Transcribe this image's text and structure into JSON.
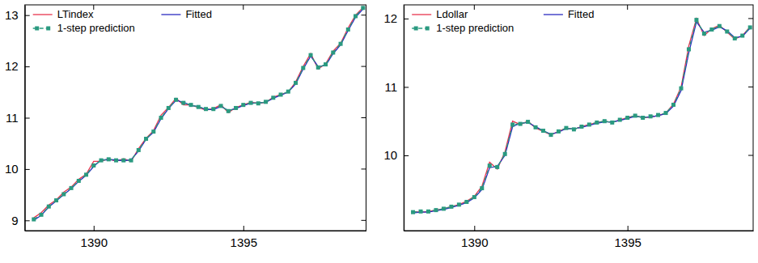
{
  "chart_data": [
    {
      "type": "line",
      "x": [
        1388,
        1388.25,
        1388.5,
        1388.75,
        1389,
        1389.25,
        1389.5,
        1389.75,
        1390,
        1390.25,
        1390.5,
        1390.75,
        1391,
        1391.25,
        1391.5,
        1391.75,
        1392,
        1392.25,
        1392.5,
        1392.75,
        1393,
        1393.25,
        1393.5,
        1393.75,
        1394,
        1394.25,
        1394.5,
        1394.75,
        1395,
        1395.25,
        1395.5,
        1395.75,
        1396,
        1396.25,
        1396.5,
        1396.75,
        1397,
        1397.25,
        1397.5,
        1397.75,
        1398,
        1398.25,
        1398.5,
        1398.75,
        1399
      ],
      "series": [
        {
          "name": "LTindex",
          "color": "#e8344e",
          "line_style": "solid",
          "values": [
            9.05,
            9.15,
            9.3,
            9.4,
            9.55,
            9.65,
            9.8,
            9.9,
            10.15,
            10.15,
            10.2,
            10.15,
            10.2,
            10.15,
            10.4,
            10.6,
            10.75,
            11.05,
            11.2,
            11.38,
            11.25,
            11.25,
            11.2,
            11.15,
            11.18,
            11.25,
            11.1,
            11.2,
            11.25,
            11.3,
            11.28,
            11.3,
            11.4,
            11.45,
            11.5,
            11.7,
            12.0,
            12.25,
            11.95,
            12.05,
            12.3,
            12.45,
            12.75,
            13.0,
            13.15
          ]
        },
        {
          "name": "Fitted",
          "color": "#2a2ac0",
          "line_style": "solid",
          "values": [
            9.0,
            9.1,
            9.26,
            9.38,
            9.5,
            9.62,
            9.76,
            9.88,
            10.05,
            10.18,
            10.18,
            10.18,
            10.16,
            10.18,
            10.35,
            10.58,
            10.72,
            10.98,
            11.18,
            11.34,
            11.3,
            11.24,
            11.22,
            11.16,
            11.16,
            11.22,
            11.14,
            11.18,
            11.24,
            11.28,
            11.29,
            11.3,
            11.38,
            11.44,
            11.5,
            11.66,
            11.95,
            12.2,
            12.0,
            12.02,
            12.25,
            12.42,
            12.7,
            12.96,
            13.12
          ]
        },
        {
          "name": "1-step prediction",
          "color": "#2a9a80",
          "line_style": "dashed",
          "marker": "square",
          "values": [
            9.02,
            9.11,
            9.27,
            9.39,
            9.51,
            9.63,
            9.77,
            9.89,
            10.07,
            10.17,
            10.19,
            10.17,
            10.17,
            10.17,
            10.37,
            10.59,
            10.73,
            11.0,
            11.19,
            11.35,
            11.29,
            11.25,
            11.21,
            11.17,
            11.17,
            11.23,
            11.13,
            11.19,
            11.25,
            11.29,
            11.28,
            11.31,
            11.39,
            11.45,
            11.51,
            11.68,
            11.97,
            12.22,
            11.98,
            12.04,
            12.27,
            12.44,
            12.72,
            12.98,
            13.14
          ]
        }
      ],
      "xlim": [
        1387.7,
        1399.1
      ],
      "xticks": [
        1390,
        1395
      ],
      "ylim": [
        8.8,
        13.2
      ],
      "yticks": [
        9,
        10,
        11,
        12,
        13
      ],
      "grid": false,
      "legend": "top-left"
    },
    {
      "type": "line",
      "x": [
        1388,
        1388.25,
        1388.5,
        1388.75,
        1389,
        1389.25,
        1389.5,
        1389.75,
        1390,
        1390.25,
        1390.5,
        1390.75,
        1391,
        1391.25,
        1391.5,
        1391.75,
        1392,
        1392.25,
        1392.5,
        1392.75,
        1393,
        1393.25,
        1393.5,
        1393.75,
        1394,
        1394.25,
        1394.5,
        1394.75,
        1395,
        1395.25,
        1395.5,
        1395.75,
        1396,
        1396.25,
        1396.5,
        1396.75,
        1397,
        1397.25,
        1397.5,
        1397.75,
        1398,
        1398.25,
        1398.5,
        1398.75,
        1399
      ],
      "series": [
        {
          "name": "Ldollar",
          "color": "#e8344e",
          "line_style": "solid",
          "values": [
            9.18,
            9.17,
            9.18,
            9.2,
            9.22,
            9.25,
            9.28,
            9.33,
            9.4,
            9.55,
            9.9,
            9.8,
            10.05,
            10.5,
            10.45,
            10.5,
            10.4,
            10.35,
            10.3,
            10.35,
            10.4,
            10.38,
            10.42,
            10.45,
            10.48,
            10.5,
            10.48,
            10.52,
            10.55,
            10.58,
            10.55,
            10.56,
            10.58,
            10.62,
            10.75,
            11.0,
            11.6,
            12.0,
            11.75,
            11.85,
            11.9,
            11.8,
            11.7,
            11.75,
            11.88
          ]
        },
        {
          "name": "Fitted",
          "color": "#2a2ac0",
          "line_style": "solid",
          "values": [
            9.16,
            9.17,
            9.17,
            9.19,
            9.21,
            9.24,
            9.27,
            9.31,
            9.38,
            9.5,
            9.82,
            9.84,
            10.0,
            10.42,
            10.47,
            10.48,
            10.42,
            10.36,
            10.31,
            10.34,
            10.39,
            10.39,
            10.41,
            10.44,
            10.47,
            10.49,
            10.49,
            10.51,
            10.54,
            10.57,
            10.56,
            10.56,
            10.58,
            10.61,
            10.72,
            10.95,
            11.5,
            11.95,
            11.8,
            11.83,
            11.88,
            11.82,
            11.72,
            11.74,
            11.86
          ]
        },
        {
          "name": "1-step prediction",
          "color": "#2a9a80",
          "line_style": "dashed",
          "marker": "square",
          "values": [
            9.17,
            9.18,
            9.18,
            9.2,
            9.22,
            9.25,
            9.28,
            9.32,
            9.39,
            9.52,
            9.85,
            9.83,
            10.02,
            10.45,
            10.46,
            10.49,
            10.41,
            10.36,
            10.3,
            10.35,
            10.4,
            10.38,
            10.42,
            10.45,
            10.48,
            10.5,
            10.48,
            10.52,
            10.55,
            10.58,
            10.55,
            10.57,
            10.59,
            10.62,
            10.74,
            10.98,
            11.55,
            11.98,
            11.78,
            11.84,
            11.89,
            11.81,
            11.71,
            11.75,
            11.87
          ]
        }
      ],
      "xlim": [
        1387.7,
        1399.1
      ],
      "xticks": [
        1390,
        1395
      ],
      "ylim": [
        8.9,
        12.2
      ],
      "yticks": [
        10,
        11,
        12
      ],
      "grid": false,
      "legend": "top-left"
    }
  ]
}
